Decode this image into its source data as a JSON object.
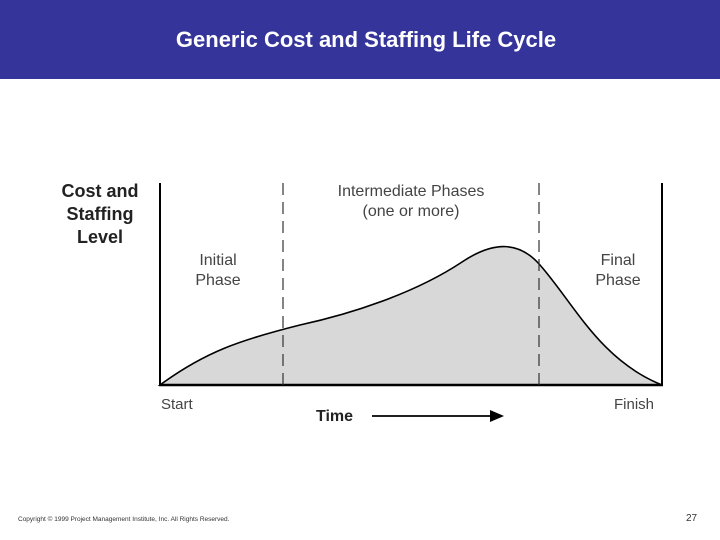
{
  "header": {
    "title": "Generic Cost and Staffing Life Cycle",
    "background": "#34349a"
  },
  "diagram": {
    "y_axis_label": [
      "Cost and",
      "Staffing",
      "Level"
    ],
    "phases": {
      "initial": [
        "Initial",
        "Phase"
      ],
      "intermediate": [
        "Intermediate Phases",
        "(one or more)"
      ],
      "final": [
        "Final",
        "Phase"
      ]
    },
    "x_axis": {
      "start": "Start",
      "finish": "Finish",
      "time": "Time"
    },
    "curve_fill": "#d8d8d8"
  },
  "footer": {
    "copyright": "Copyright © 1999 Project Management Institute, Inc. All Rights Reserved.",
    "page_number": "27"
  }
}
